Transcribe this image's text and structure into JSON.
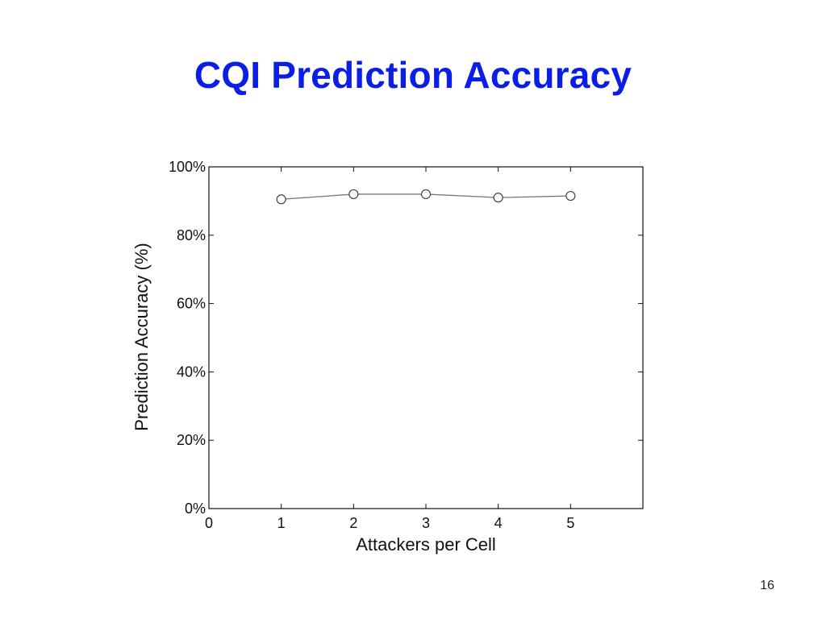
{
  "slide": {
    "title": "CQI Prediction Accuracy",
    "page_number": "16"
  },
  "colors": {
    "title": "#0a1ee6",
    "series_line": "#777777",
    "axis": "#111111"
  },
  "chart_data": {
    "type": "line",
    "title": "",
    "xlabel": "Attackers per Cell",
    "ylabel": "Prediction Accuracy (%)",
    "xlim": [
      0,
      6
    ],
    "ylim": [
      0,
      100
    ],
    "x_ticks": [
      0,
      1,
      2,
      3,
      4,
      5
    ],
    "x_tick_labels": [
      "0",
      "1",
      "2",
      "3",
      "4",
      "5"
    ],
    "y_ticks": [
      0,
      20,
      40,
      60,
      80,
      100
    ],
    "y_tick_labels": [
      "0%",
      "20%",
      "40%",
      "60%",
      "80%",
      "100%"
    ],
    "grid": false,
    "legend": "none",
    "marker": "open-circle",
    "series": [
      {
        "x": [
          1,
          2,
          3,
          4,
          5
        ],
        "values": [
          90.5,
          92,
          92,
          91,
          91.5
        ]
      }
    ]
  }
}
